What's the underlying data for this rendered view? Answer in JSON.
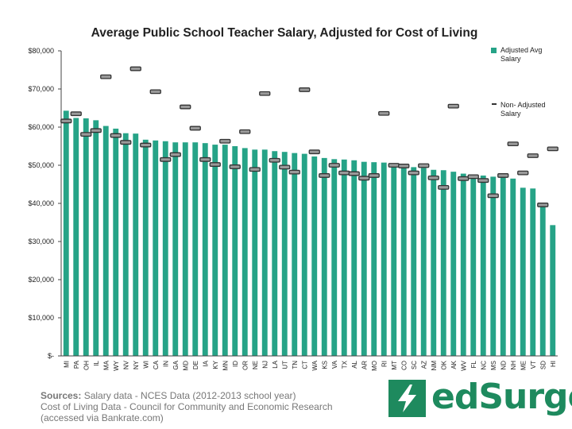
{
  "chart_data": {
    "type": "bar",
    "title": "Average Public School Teacher Salary, Adjusted for Cost of Living",
    "xlabel": "",
    "ylabel": "",
    "ylim": [
      0,
      80000
    ],
    "y_ticks": [
      "$-",
      "$10,000",
      "$20,000",
      "$30,000",
      "$40,000",
      "$50,000",
      "$60,000",
      "$70,000",
      "$80,000"
    ],
    "grid": false,
    "legend_position": "right",
    "colors": {
      "bar": "#26a387",
      "marker": "#333333"
    },
    "categories": [
      "MI",
      "PA",
      "OH",
      "IL",
      "MA",
      "WY",
      "NV",
      "NY",
      "WI",
      "CA",
      "IN",
      "GA",
      "MD",
      "DE",
      "IA",
      "KY",
      "MN",
      "ID",
      "OR",
      "NE",
      "NJ",
      "LA",
      "UT",
      "TN",
      "CT",
      "WA",
      "KS",
      "VA",
      "TX",
      "AL",
      "AR",
      "MO",
      "RI",
      "MT",
      "CO",
      "SC",
      "AZ",
      "NM",
      "OK",
      "AK",
      "WV",
      "FL",
      "NC",
      "MS",
      "ND",
      "NH",
      "ME",
      "VT",
      "SD",
      "HI"
    ],
    "series": [
      {
        "name": "Adjusted Avg Salary",
        "kind": "bar",
        "values": [
          64300,
          62400,
          62300,
          61800,
          60300,
          59600,
          58400,
          58300,
          56700,
          56500,
          56300,
          56000,
          56000,
          56000,
          55800,
          55400,
          55400,
          55000,
          54500,
          54100,
          54100,
          53700,
          53500,
          53200,
          53000,
          52300,
          51900,
          51600,
          51500,
          51300,
          50900,
          50800,
          50700,
          50500,
          49900,
          49500,
          49300,
          48800,
          48700,
          48300,
          47800,
          47500,
          47300,
          47000,
          46900,
          46500,
          44100,
          43900,
          40000,
          34300
        ]
      },
      {
        "name": "Non- Adjusted Salary",
        "kind": "marker",
        "values": [
          61600,
          63500,
          58100,
          59100,
          73200,
          57800,
          56000,
          75300,
          55300,
          69300,
          51500,
          52800,
          65300,
          59700,
          51500,
          50200,
          56300,
          49600,
          58800,
          48900,
          68800,
          51300,
          49500,
          48200,
          69800,
          53500,
          47300,
          50000,
          48000,
          47800,
          46600,
          47300,
          63600,
          50000,
          49800,
          48000,
          49900,
          46700,
          44200,
          65500,
          46500,
          47000,
          46000,
          42000,
          47300,
          55600,
          48000,
          52500,
          39600,
          54300
        ]
      }
    ]
  },
  "sources": {
    "label": "Sources:",
    "line1": " Salary data - NCES Data (2012-2013 school year)",
    "line2": "Cost of Living Data - Council for Community and Economic Research",
    "line3": "(accessed via Bankrate.com)"
  },
  "logo": {
    "text": "edSurge",
    "icon": "lightning-bolt-icon"
  }
}
